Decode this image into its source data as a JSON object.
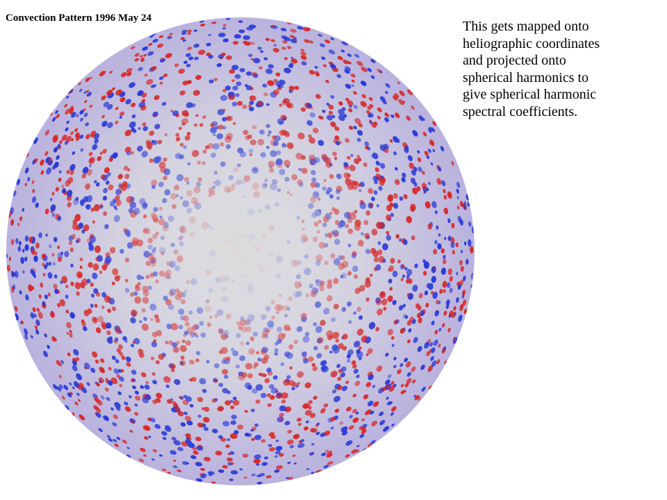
{
  "slide": {
    "figure_title": "Convection Pattern 1996 May 24",
    "caption_lines": [
      "This gets mapped onto",
      "heliographic coordinates",
      "and projected onto",
      "spherical harmonics to",
      "give spherical harmonic",
      "spectral coefficients."
    ]
  },
  "colors": {
    "positive": "#d62a2a",
    "negative": "#2a3ad6",
    "neutral": "#d8d8dc",
    "background": "#ffffff"
  }
}
